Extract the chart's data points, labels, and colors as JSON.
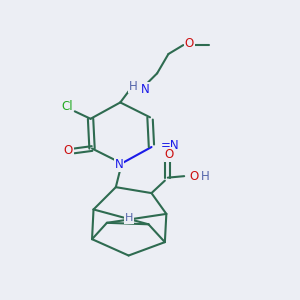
{
  "background_color": "#ECEEF4",
  "bond_color": "#2E6B50",
  "n_color": "#1B1BE8",
  "o_color": "#CC1111",
  "cl_color": "#22AA22",
  "h_color": "#5566AA",
  "figsize": [
    3.0,
    3.0
  ],
  "dpi": 100,
  "xlim": [
    0,
    10
  ],
  "ylim": [
    0,
    10
  ]
}
